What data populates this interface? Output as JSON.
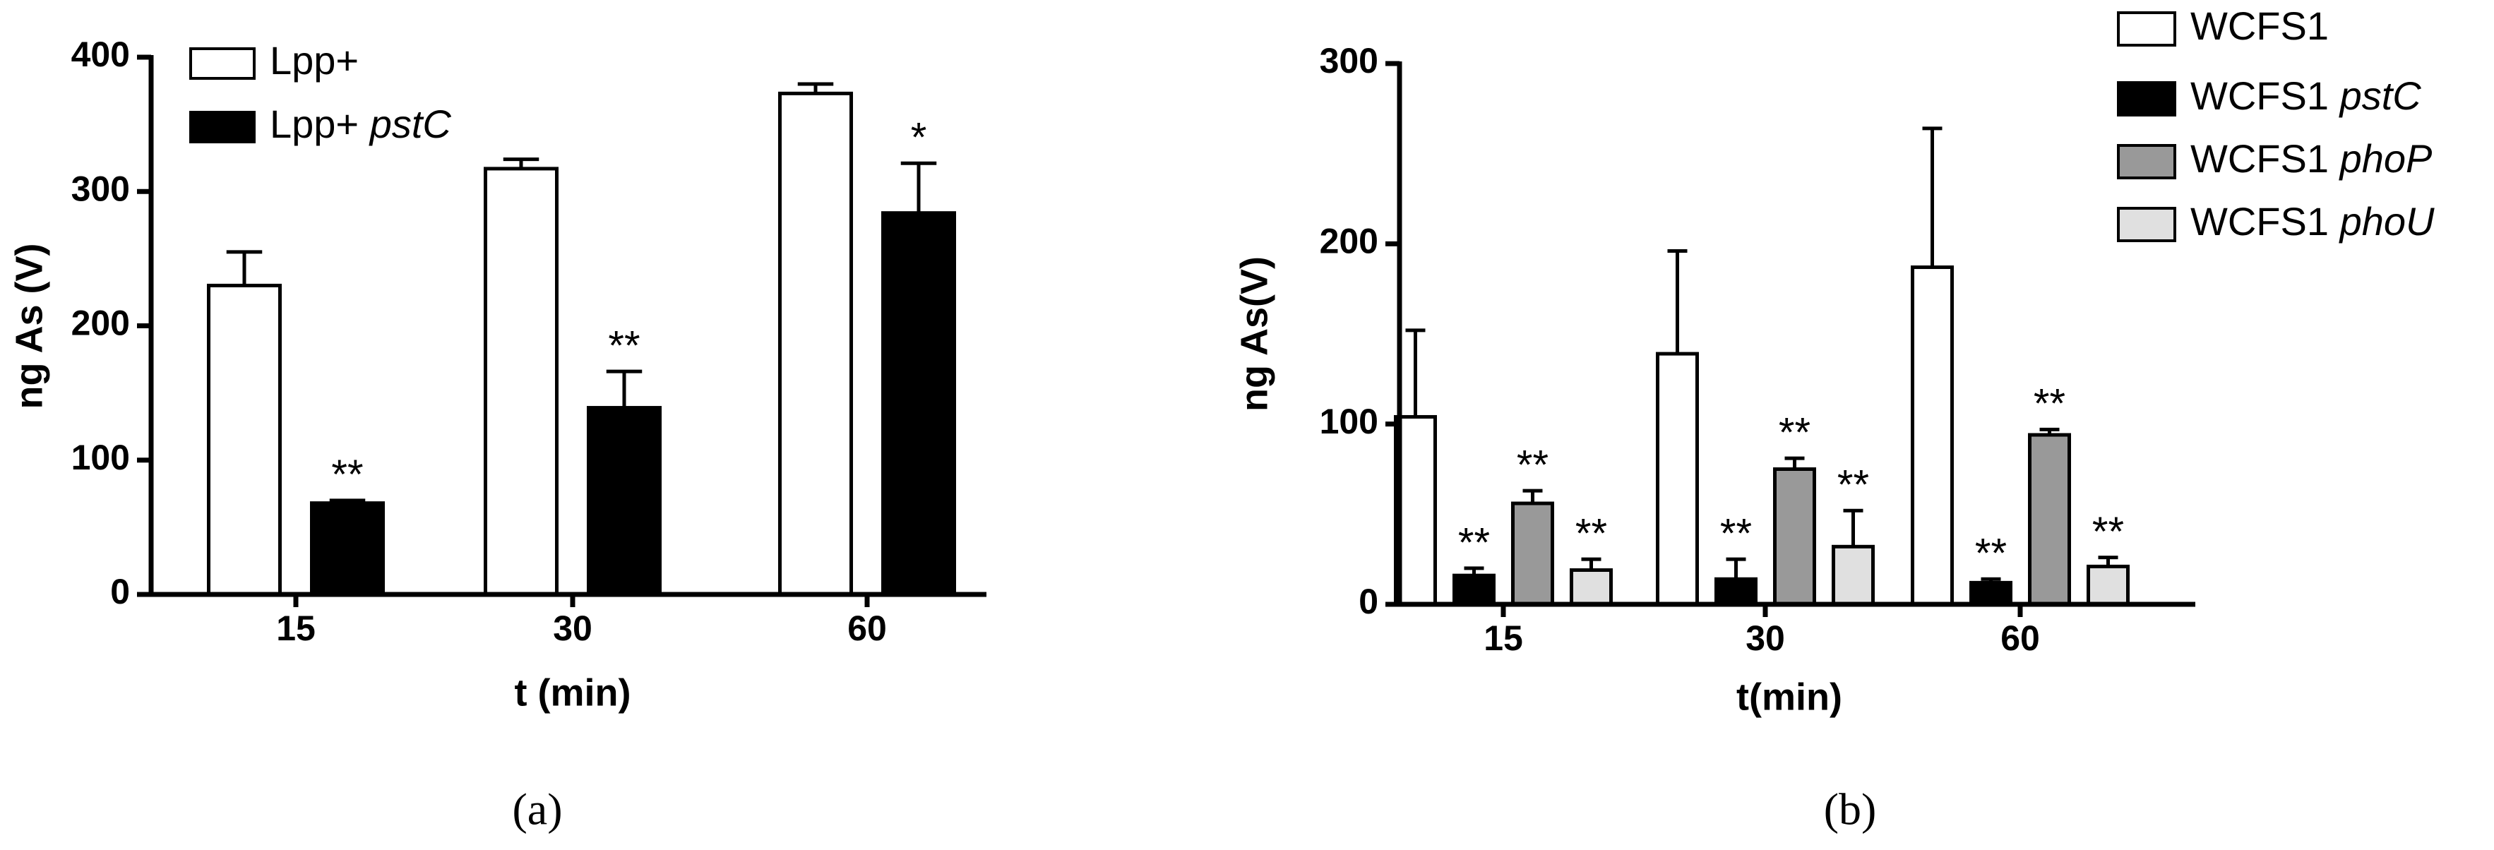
{
  "chart_data": [
    {
      "type": "bar",
      "panel_label": "(a)",
      "y_label": "ng As (V)",
      "x_label": "t (min)",
      "categories": [
        "15",
        "30",
        "60"
      ],
      "ylim": [
        0,
        400
      ],
      "yticks": [
        0,
        100,
        200,
        300,
        400
      ],
      "legend": "upper left",
      "series": [
        {
          "name": "Lpp+",
          "color": "#ffffff",
          "values": [
            230,
            317,
            373
          ],
          "errors": [
            25,
            7,
            7
          ]
        },
        {
          "name": "Lpp+ pstC",
          "color": "#000000",
          "values": [
            68,
            139,
            284
          ],
          "errors": [
            2,
            27,
            37
          ],
          "significance": [
            "**",
            "**",
            "*"
          ]
        }
      ]
    },
    {
      "type": "bar",
      "panel_label": "(b)",
      "y_label": "ng As(V)",
      "x_label": "t(min)",
      "categories": [
        "15",
        "30",
        "60"
      ],
      "ylim": [
        0,
        300
      ],
      "yticks": [
        0,
        100,
        200,
        300
      ],
      "legend": "upper right",
      "series": [
        {
          "name": "WCFS1",
          "color": "#ffffff",
          "values": [
            104,
            139,
            187
          ],
          "errors": [
            48,
            57,
            77
          ]
        },
        {
          "name": "WCFS1 pstC",
          "color": "#000000",
          "values": [
            16,
            14,
            12
          ],
          "errors": [
            4,
            11,
            2
          ],
          "significance": [
            "**",
            "**",
            "**"
          ]
        },
        {
          "name": "WCFS1 phoP",
          "color": "#999999",
          "values": [
            56,
            75,
            94
          ],
          "errors": [
            7,
            6,
            3
          ],
          "significance": [
            "**",
            "**",
            "**"
          ]
        },
        {
          "name": "WCFS1 phoU",
          "color": "#e0e0e0",
          "values": [
            19,
            32,
            21
          ],
          "errors": [
            6,
            20,
            5
          ],
          "significance": [
            "**",
            "**",
            "**"
          ]
        }
      ]
    }
  ]
}
